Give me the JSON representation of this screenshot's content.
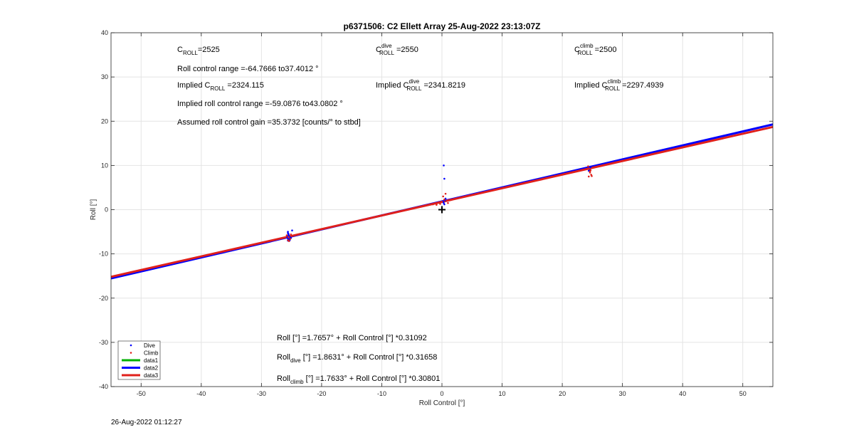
{
  "chart_data": {
    "type": "scatter",
    "title": "p6371506: C2 Ellett Array 25-Aug-2022 23:13:07Z",
    "xlabel": "Roll Control [°]",
    "ylabel": "Roll [°]",
    "xlim": [
      -55,
      55
    ],
    "ylim": [
      -40,
      40
    ],
    "xticks": [
      "-50",
      "-40",
      "-30",
      "-20",
      "-10",
      "0",
      "10",
      "20",
      "30",
      "40",
      "50"
    ],
    "yticks": [
      "40",
      "30",
      "20",
      "10",
      "0",
      "-10",
      "-20",
      "-30",
      "-40"
    ],
    "grid": true,
    "legend_position": "bottom-left",
    "series": [
      {
        "name": "Dive",
        "kind": "points",
        "color": "#0000ff",
        "x": [
          -25.6,
          -25.5,
          -25.4,
          -25.7,
          -25.3,
          -25.5,
          -25.6,
          -25.4,
          -25.2,
          -25.5,
          -25.6,
          -25.3,
          -25.1,
          -25.5,
          -25.4,
          -25.6,
          -24.9,
          0.3,
          0.4,
          0.5,
          0.2,
          0.3,
          0.6,
          0.4,
          0.1,
          24.5,
          24.6,
          24.4,
          24.7
        ],
        "y": [
          -5.3,
          -5.6,
          -5.9,
          -6.2,
          -6.5,
          -6.8,
          -7.0,
          -6.0,
          -6.3,
          -5.8,
          -6.6,
          -6.9,
          -6.4,
          -5.5,
          -6.7,
          -5.0,
          -4.7,
          10.0,
          7.0,
          2.1,
          1.8,
          1.5,
          2.5,
          1.2,
          1.9,
          9.4,
          9.0,
          8.8,
          9.6
        ]
      },
      {
        "name": "Climb",
        "kind": "points",
        "color": "#e0201b",
        "x": [
          -25.8,
          -25.5,
          -25.2,
          -25.6,
          -25.4,
          -25.1,
          -1.5,
          -1.2,
          -0.9,
          -0.5,
          0.0,
          0.4,
          0.8,
          0.2,
          0.6,
          1.0,
          -0.3,
          24.3,
          24.5,
          24.7,
          24.6,
          24.8,
          24.4,
          24.9,
          24.6
        ],
        "y": [
          -5.8,
          -6.2,
          -6.6,
          -6.9,
          -7.1,
          -5.6,
          1.2,
          1.4,
          1.1,
          1.6,
          1.8,
          2.3,
          2.0,
          3.0,
          3.6,
          1.5,
          1.3,
          9.8,
          9.3,
          8.9,
          8.4,
          7.9,
          7.5,
          7.6,
          8.6
        ]
      },
      {
        "name": "data1",
        "kind": "line",
        "color": "#00b000",
        "x": [
          -55,
          55
        ],
        "y": [
          -15.3361,
          18.8669
        ]
      },
      {
        "name": "data2",
        "kind": "line",
        "color": "#0000ff",
        "x": [
          -55,
          55
        ],
        "y": [
          -15.5488,
          19.275
        ]
      },
      {
        "name": "data3",
        "kind": "line",
        "color": "#e0201b",
        "x": [
          -55,
          55
        ],
        "y": [
          -15.1773,
          18.7038
        ]
      }
    ],
    "marker": {
      "symbol": "+",
      "x": 0,
      "y": 0
    },
    "annotations": {
      "col1": [
        {
          "kind": "sub",
          "pre": "C",
          "sub": "ROLL",
          "post": "=2525"
        },
        {
          "kind": "plain",
          "text": "Roll control range =-64.7666 to37.4012 °"
        },
        {
          "kind": "sub",
          "pre": "Implied C",
          "sub": "ROLL",
          "post": " =2324.115"
        },
        {
          "kind": "plain",
          "text": "Implied roll control range =-59.0876 to43.0802 °"
        },
        {
          "kind": "plain",
          "text": "Assumed roll control gain =35.3732 [counts/° to stbd]"
        }
      ],
      "col2": [
        {
          "kind": "supsub",
          "pre": "C",
          "sup": "dive",
          "sub": "ROLL",
          "post": " =2550"
        },
        {
          "kind": "supsub",
          "pre": "Implied C",
          "sup": "dive",
          "sub": "ROLL",
          "post": " =2341.8219"
        }
      ],
      "col3": [
        {
          "kind": "supsub",
          "pre": "C",
          "sup": "climb",
          "sub": "ROLL",
          "post": " =2500"
        },
        {
          "kind": "supsub",
          "pre": "Implied C",
          "sup": "climb",
          "sub": "ROLL",
          "post": " =2297.4939"
        }
      ],
      "fits": [
        {
          "kind": "plain",
          "text": "Roll [°] =1.7657° + Roll Control [°] *0.31092"
        },
        {
          "kind": "sub",
          "pre": "Roll",
          "sub": "dive",
          "post": " [°] =1.8631° + Roll Control [°] *0.31658"
        },
        {
          "kind": "sub",
          "pre": "Roll",
          "sub": "climb",
          "post": " [°] =1.7633° + Roll Control [°] *0.30801"
        }
      ]
    }
  },
  "footer": {
    "timestamp": "26-Aug-2022 01:12:27"
  }
}
